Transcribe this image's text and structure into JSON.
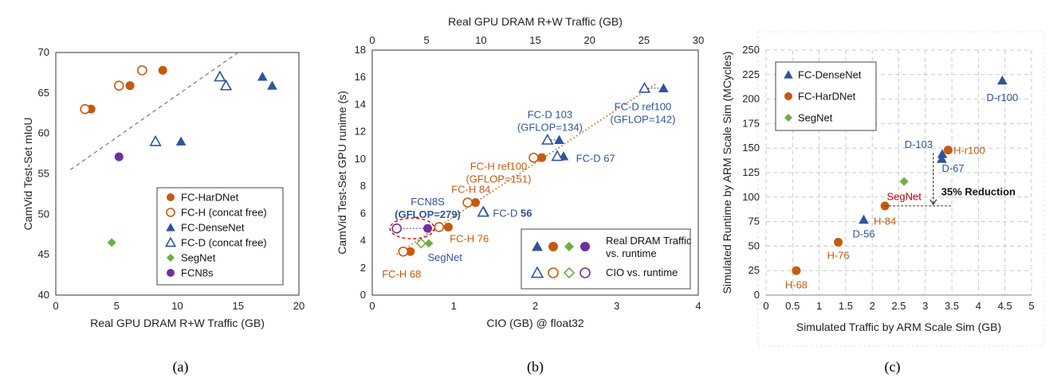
{
  "colors": {
    "hardnet": "#C55A11",
    "densenet": "#2F5597",
    "segnet": "#70AD47",
    "fcn8s": "#7030A0",
    "annotation_blue": "#2F5597",
    "annotation_orange": "#C55A11",
    "segnet_red": "#C00000"
  },
  "chart_data": [
    {
      "id": "a",
      "type": "scatter",
      "caption": "(a)",
      "xlabel": "Real GPU DRAM R+W Traffic (GB)",
      "ylabel": "CamVid Test-Set mIoU",
      "xlim": [
        0,
        20
      ],
      "ylim": [
        40,
        70
      ],
      "xticks": [
        "0",
        "5",
        "10",
        "15",
        "20"
      ],
      "yticks": [
        "40",
        "45",
        "50",
        "55",
        "60",
        "65",
        "70"
      ],
      "grid": false,
      "legend_position": "bottom-right",
      "series": [
        {
          "name": "FC-HarDNet",
          "marker": "circle",
          "fill": "solid",
          "color": "hardnet",
          "points": [
            [
              2.9,
              63.0
            ],
            [
              6.1,
              65.9
            ],
            [
              8.8,
              67.8
            ]
          ]
        },
        {
          "name": "FC-H (concat free)",
          "marker": "circle",
          "fill": "open",
          "color": "hardnet",
          "points": [
            [
              2.4,
              63.0
            ],
            [
              5.2,
              65.9
            ],
            [
              7.1,
              67.8
            ]
          ]
        },
        {
          "name": "FC-DenseNet",
          "marker": "triangle",
          "fill": "solid",
          "color": "densenet",
          "points": [
            [
              10.3,
              59.0
            ],
            [
              17.0,
              67.0
            ],
            [
              17.8,
              65.9
            ]
          ]
        },
        {
          "name": "FC-D (concat free)",
          "marker": "triangle",
          "fill": "open",
          "color": "densenet",
          "points": [
            [
              8.2,
              59.0
            ],
            [
              13.5,
              67.0
            ],
            [
              14.0,
              65.9
            ]
          ]
        },
        {
          "name": "SegNet",
          "marker": "diamond",
          "fill": "solid",
          "color": "segnet",
          "points": [
            [
              4.6,
              46.5
            ]
          ]
        },
        {
          "name": "FCN8s",
          "marker": "circle",
          "fill": "solid",
          "color": "fcn8s",
          "points": [
            [
              5.2,
              57.1
            ]
          ]
        }
      ],
      "trendline": {
        "from": [
          1.2,
          55.5
        ],
        "to": [
          15.0,
          70.0
        ]
      }
    },
    {
      "id": "b",
      "type": "scatter",
      "caption": "(b)",
      "xlabel": "CIO (GB) @ float32",
      "x2label": "Real GPU DRAM R+W Traffic (GB)",
      "ylabel": "CamVid Test-Set GPU runime (s)",
      "xlim": [
        0,
        4
      ],
      "x2lim": [
        0,
        30
      ],
      "ylim": [
        0,
        18
      ],
      "xticks": [
        "0",
        "1",
        "2",
        "3",
        "4"
      ],
      "x2ticks": [
        "0",
        "5",
        "10",
        "15",
        "20",
        "25",
        "30"
      ],
      "yticks": [
        "0",
        "2",
        "4",
        "6",
        "8",
        "10",
        "12",
        "14",
        "16",
        "18"
      ],
      "grid": false,
      "legend_position": "bottom-right",
      "legend": [
        {
          "label_lines": [
            "Real DRAM Traffic",
            "vs. runtime"
          ],
          "fill": "solid"
        },
        {
          "label_lines": [
            "CIO vs. runtime"
          ],
          "fill": "open"
        }
      ],
      "series": [
        {
          "name": "Real DRAM Traffic vs. runtime",
          "axis": "x2",
          "points": [
            {
              "marker": "circle",
              "color": "hardnet",
              "x": 3.5,
              "y": 3.2
            },
            {
              "marker": "circle",
              "color": "hardnet",
              "x": 7.0,
              "y": 5.0
            },
            {
              "marker": "circle",
              "color": "hardnet",
              "x": 9.5,
              "y": 6.8
            },
            {
              "marker": "circle",
              "color": "hardnet",
              "x": 15.6,
              "y": 10.1
            },
            {
              "marker": "triangle",
              "color": "densenet",
              "x": 10.3,
              "y": 6.1
            },
            {
              "marker": "triangle",
              "color": "densenet",
              "x": 17.6,
              "y": 10.2
            },
            {
              "marker": "triangle",
              "color": "densenet",
              "x": 17.2,
              "y": 11.4
            },
            {
              "marker": "triangle",
              "color": "densenet",
              "x": 26.8,
              "y": 15.2
            },
            {
              "marker": "diamond",
              "color": "segnet",
              "x": 5.2,
              "y": 3.8
            },
            {
              "marker": "circle",
              "color": "fcn8s",
              "x": 5.1,
              "y": 4.9
            }
          ]
        },
        {
          "name": "CIO vs. runtime",
          "axis": "x",
          "points": [
            {
              "marker": "circle",
              "color": "hardnet",
              "x": 0.38,
              "y": 3.2
            },
            {
              "marker": "circle",
              "color": "hardnet",
              "x": 0.82,
              "y": 5.0
            },
            {
              "marker": "circle",
              "color": "hardnet",
              "x": 1.17,
              "y": 6.8
            },
            {
              "marker": "circle",
              "color": "hardnet",
              "x": 1.98,
              "y": 10.1
            },
            {
              "marker": "triangle",
              "color": "densenet",
              "x": 1.36,
              "y": 6.1
            },
            {
              "marker": "triangle",
              "color": "densenet",
              "x": 2.27,
              "y": 10.2
            },
            {
              "marker": "triangle",
              "color": "densenet",
              "x": 2.15,
              "y": 11.4
            },
            {
              "marker": "triangle",
              "color": "densenet",
              "x": 3.34,
              "y": 15.2
            },
            {
              "marker": "diamond",
              "color": "segnet",
              "x": 0.6,
              "y": 3.8
            },
            {
              "marker": "circle",
              "color": "fcn8s",
              "x": 0.3,
              "y": 4.9
            }
          ]
        }
      ],
      "trendline": {
        "axis": "x",
        "from": [
          0.3,
          3.0
        ],
        "to": [
          3.5,
          15.6
        ]
      },
      "annotations": [
        {
          "key": "fch68",
          "lines": [
            "FC-H 68"
          ],
          "color": "hardnet",
          "anchor": [
            0.6,
            1.3
          ],
          "align": "end"
        },
        {
          "key": "segnet",
          "lines": [
            "SegNet"
          ],
          "color": "densenet",
          "anchor": [
            0.68,
            2.5
          ],
          "align": "start"
        },
        {
          "key": "fch76",
          "lines": [
            "FC-H 76"
          ],
          "color": "hardnet",
          "anchor": [
            0.95,
            3.9
          ],
          "align": "start"
        },
        {
          "key": "fcd56",
          "lines": [
            "FC-D ",
            "56"
          ],
          "color": "densenet",
          "anchor": [
            1.48,
            5.75
          ],
          "align": "start",
          "bold_second": true
        },
        {
          "key": "fch84",
          "lines": [
            "FC-H 84"
          ],
          "color": "hardnet",
          "anchor": [
            0.97,
            7.5
          ],
          "align": "start"
        },
        {
          "key": "fcn8s",
          "lines": [
            "FCN8S",
            "(GFLOP=279)"
          ],
          "color": "densenet",
          "anchor": [
            0.68,
            6.6
          ],
          "align": "middle",
          "bold_line2": true
        },
        {
          "key": "fchref",
          "lines": [
            "FC-H ref100",
            "(GFLOP=151)"
          ],
          "color": "hardnet",
          "anchor": [
            1.55,
            9.2
          ],
          "align": "middle"
        },
        {
          "key": "fcd67",
          "lines": [
            "FC-D 67"
          ],
          "color": "densenet",
          "anchor": [
            2.5,
            9.8
          ],
          "align": "start"
        },
        {
          "key": "fcd103",
          "lines": [
            "FC-D 103",
            "(GFLOP=134)"
          ],
          "color": "densenet",
          "anchor": [
            2.18,
            13.0
          ],
          "align": "middle"
        },
        {
          "key": "fcdref",
          "lines": [
            "FC-D ref100",
            "(GFLOP=142)"
          ],
          "color": "densenet",
          "anchor": [
            3.32,
            13.6
          ],
          "align": "middle"
        }
      ]
    },
    {
      "id": "c",
      "type": "scatter",
      "caption": "(c)",
      "xlabel": "Simulated Traffic by ARM Scale Sim (GB)",
      "ylabel": "Simulated Runtime by ARM Scale Sim (MCycles)",
      "xlim": [
        0,
        5
      ],
      "ylim": [
        0,
        250
      ],
      "xticks": [
        "0",
        "0.5",
        "1",
        "1.5",
        "2",
        "2.5",
        "3",
        "3.5",
        "4",
        "4.5",
        "5"
      ],
      "yticks": [
        "0",
        "25",
        "50",
        "75",
        "100",
        "125",
        "150",
        "175",
        "200",
        "225",
        "250"
      ],
      "grid": true,
      "legend_position": "top-left",
      "series": [
        {
          "name": "FC-DenseNet",
          "marker": "triangle",
          "color": "densenet",
          "points": [
            [
              1.84,
              77
            ],
            [
              3.31,
              139
            ],
            [
              3.32,
              144
            ],
            [
              4.45,
              219
            ]
          ]
        },
        {
          "name": "FC-HarDNet",
          "marker": "circle",
          "color": "hardnet",
          "points": [
            [
              0.57,
              25
            ],
            [
              1.36,
              54
            ],
            [
              2.24,
              91
            ],
            [
              3.43,
              148
            ]
          ]
        },
        {
          "name": "SegNet",
          "marker": "diamond",
          "color": "segnet",
          "points": [
            [
              2.6,
              116
            ]
          ]
        }
      ],
      "annotations": [
        {
          "key": "dr100",
          "lines": [
            "D-r100"
          ],
          "color": "densenet",
          "anchor": [
            4.45,
            198
          ],
          "align": "middle"
        },
        {
          "key": "d103",
          "lines": [
            "D-103"
          ],
          "color": "densenet",
          "anchor": [
            3.14,
            150
          ],
          "align": "end"
        },
        {
          "key": "hr100",
          "lines": [
            "H-r100"
          ],
          "color": "hardnet",
          "anchor": [
            3.53,
            144
          ],
          "align": "start"
        },
        {
          "key": "d67",
          "lines": [
            "D-67"
          ],
          "color": "densenet",
          "anchor": [
            3.31,
            126
          ],
          "align": "start"
        },
        {
          "key": "segnet",
          "lines": [
            "SegNet"
          ],
          "color": "segnet_red",
          "anchor": [
            2.6,
            97
          ],
          "align": "middle"
        },
        {
          "key": "h84",
          "lines": [
            "H-84"
          ],
          "color": "hardnet",
          "anchor": [
            2.24,
            72
          ],
          "align": "middle"
        },
        {
          "key": "d56",
          "lines": [
            "D-56"
          ],
          "color": "densenet",
          "anchor": [
            1.84,
            59
          ],
          "align": "middle"
        },
        {
          "key": "h76",
          "lines": [
            "H-76"
          ],
          "color": "hardnet",
          "anchor": [
            1.36,
            37
          ],
          "align": "middle"
        },
        {
          "key": "h68",
          "lines": [
            "H-68"
          ],
          "color": "hardnet",
          "anchor": [
            0.57,
            7
          ],
          "align": "middle"
        }
      ],
      "reduction": {
        "label": "35% Reduction",
        "x": 3.15,
        "y_from": 145,
        "y_to": 91,
        "x_from": 2.24,
        "x_to": 3.5
      }
    }
  ]
}
